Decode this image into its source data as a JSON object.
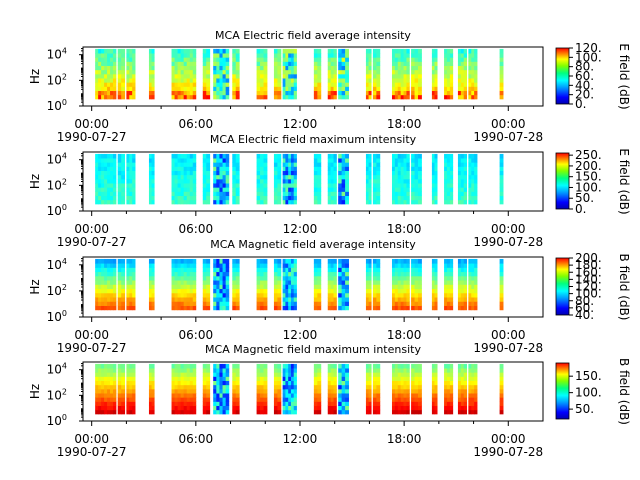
{
  "figure": {
    "time_labels": [
      {
        "time": "00:00",
        "date": "1990-07-27"
      },
      {
        "time": "06:00",
        "date": ""
      },
      {
        "time": "12:00",
        "date": ""
      },
      {
        "time": "18:00",
        "date": ""
      },
      {
        "time": "00:00",
        "date": "1990-07-28"
      }
    ]
  },
  "chart_data": [
    {
      "type": "heatmap",
      "title": "MCA  Electric field average intensity",
      "ylabel": "Hz",
      "yticks": [
        "10",
        "10",
        "10"
      ],
      "yexp": [
        "0",
        "2",
        "4"
      ],
      "colorbar_label": "E field (dB)",
      "colorbar_ticks": [
        "0.",
        "20.",
        "40.",
        "60.",
        "80.",
        "100.",
        "120."
      ],
      "colorbar_range": [
        0,
        120
      ],
      "y_range_log10": [
        0,
        4.6
      ]
    },
    {
      "type": "heatmap",
      "title": "MCA  Electric field maximum intensity",
      "ylabel": "Hz",
      "yticks": [
        "10",
        "10",
        "10"
      ],
      "yexp": [
        "0",
        "2",
        "4"
      ],
      "colorbar_label": "E field (dB)",
      "colorbar_ticks": [
        "0.",
        "50.",
        "100.",
        "150.",
        "200.",
        "250."
      ],
      "colorbar_range": [
        0,
        260
      ],
      "y_range_log10": [
        0,
        4.6
      ]
    },
    {
      "type": "heatmap",
      "title": "MCA  Magnetic field average intensity",
      "ylabel": "Hz",
      "yticks": [
        "10",
        "10",
        "10"
      ],
      "yexp": [
        "0",
        "2",
        "4"
      ],
      "colorbar_label": "B field (dB)",
      "colorbar_ticks": [
        "40.",
        "60.",
        "80.",
        "100.",
        "120.",
        "140.",
        "160.",
        "180.",
        "200."
      ],
      "colorbar_range": [
        40,
        200
      ],
      "y_range_log10": [
        0,
        4.6
      ]
    },
    {
      "type": "heatmap",
      "title": "MCA  Magnetic field maximum intensity",
      "ylabel": "Hz",
      "yticks": [
        "10",
        "10",
        "10"
      ],
      "yexp": [
        "0",
        "2",
        "4"
      ],
      "colorbar_label": "B field (dB)",
      "colorbar_ticks": [
        "50.",
        "100.",
        "150."
      ],
      "colorbar_range": [
        20,
        190
      ],
      "y_range_log10": [
        0,
        4.6
      ]
    }
  ],
  "data_segments_hours": [
    [
      0.2,
      1.4
    ],
    [
      1.5,
      1.9
    ],
    [
      2.0,
      2.5
    ],
    [
      3.3,
      3.6
    ],
    [
      4.6,
      6.0
    ],
    [
      6.4,
      6.8
    ],
    [
      7.0,
      7.9
    ],
    [
      8.1,
      8.5
    ],
    [
      9.5,
      10.1
    ],
    [
      10.5,
      10.9
    ],
    [
      11.0,
      11.8
    ],
    [
      12.8,
      13.2
    ],
    [
      13.6,
      14.1
    ],
    [
      14.2,
      14.8
    ],
    [
      15.8,
      16.1
    ],
    [
      16.2,
      16.6
    ],
    [
      17.3,
      18.3
    ],
    [
      18.4,
      19.0
    ],
    [
      19.6,
      19.9
    ],
    [
      20.3,
      20.8
    ],
    [
      21.1,
      21.6
    ],
    [
      21.7,
      22.2
    ],
    [
      23.5,
      23.7
    ]
  ]
}
